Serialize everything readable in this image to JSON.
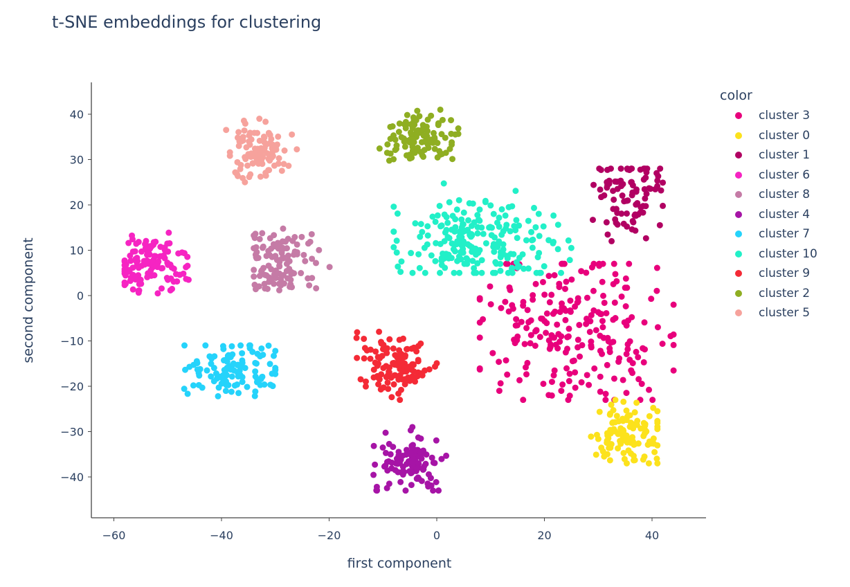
{
  "title": "t-SNE embeddings for clustering",
  "legend": {
    "title": "color",
    "items": [
      {
        "label": "cluster 3",
        "color": "#e8007c"
      },
      {
        "label": "cluster 0",
        "color": "#fce21c"
      },
      {
        "label": "cluster 1",
        "color": "#b10062"
      },
      {
        "label": "cluster 6",
        "color": "#f624c2"
      },
      {
        "label": "cluster 8",
        "color": "#c57ba6"
      },
      {
        "label": "cluster 4",
        "color": "#a614a6"
      },
      {
        "label": "cluster 7",
        "color": "#25d3fb"
      },
      {
        "label": "cluster 10",
        "color": "#22f0c8"
      },
      {
        "label": "cluster 9",
        "color": "#f42a36"
      },
      {
        "label": "cluster 2",
        "color": "#8fae22"
      },
      {
        "label": "cluster 5",
        "color": "#f6a29c"
      }
    ]
  },
  "chart_data": {
    "type": "scatter",
    "title": "t-SNE embeddings for clustering",
    "xlabel": "first component",
    "ylabel": "second component",
    "xlim": [
      -64,
      50
    ],
    "ylim": [
      -49,
      47
    ],
    "xticks": [
      -60,
      -40,
      -20,
      0,
      20,
      40
    ],
    "yticks": [
      -40,
      -30,
      -20,
      -10,
      0,
      10,
      20,
      30,
      40
    ],
    "xtick_labels": [
      "−60",
      "−40",
      "−20",
      "0",
      "20",
      "40"
    ],
    "ytick_labels": [
      "−40",
      "−30",
      "−20",
      "−10",
      "0",
      "10",
      "20",
      "30",
      "40"
    ],
    "grid": false,
    "legend_position": "right",
    "legend_title": "color",
    "series": [
      {
        "name": "cluster 3",
        "color": "#e8007c",
        "center": [
          26,
          -8
        ],
        "spread": [
          9,
          8
        ],
        "n": 230,
        "extent": {
          "x": [
            8,
            44
          ],
          "y": [
            -23,
            7
          ]
        }
      },
      {
        "name": "cluster 0",
        "color": "#fce21c",
        "center": [
          35,
          -31
        ],
        "spread": [
          3.5,
          3.5
        ],
        "n": 110,
        "extent": {
          "x": [
            28,
            41
          ],
          "y": [
            -37,
            -23
          ]
        }
      },
      {
        "name": "cluster 1",
        "color": "#b10062",
        "center": [
          36,
          22
        ],
        "spread": [
          3.5,
          4.5
        ],
        "n": 90,
        "extent": {
          "x": [
            29,
            42
          ],
          "y": [
            12,
            28
          ]
        }
      },
      {
        "name": "cluster 6",
        "color": "#f624c2",
        "center": [
          -53,
          7
        ],
        "spread": [
          3,
          3.5
        ],
        "n": 120,
        "extent": {
          "x": [
            -58,
            -45
          ],
          "y": [
            0,
            14
          ]
        }
      },
      {
        "name": "cluster 8",
        "color": "#c57ba6",
        "center": [
          -29,
          7
        ],
        "spread": [
          3.5,
          4
        ],
        "n": 110,
        "extent": {
          "x": [
            -34,
            -18
          ],
          "y": [
            -1,
            16
          ]
        }
      },
      {
        "name": "cluster 4",
        "color": "#a614a6",
        "center": [
          -5,
          -37
        ],
        "spread": [
          3.5,
          3
        ],
        "n": 110,
        "extent": {
          "x": [
            -12,
            3
          ],
          "y": [
            -43,
            -29
          ]
        }
      },
      {
        "name": "cluster 7",
        "color": "#25d3fb",
        "center": [
          -37,
          -16
        ],
        "spread": [
          4.5,
          3
        ],
        "n": 110,
        "extent": {
          "x": [
            -47,
            -30
          ],
          "y": [
            -24,
            -11
          ]
        }
      },
      {
        "name": "cluster 10",
        "color": "#22f0c8",
        "center": [
          7,
          12
        ],
        "spread": [
          8,
          4.5
        ],
        "n": 220,
        "extent": {
          "x": [
            -8,
            25
          ],
          "y": [
            5,
            25
          ]
        }
      },
      {
        "name": "cluster 9",
        "color": "#f42a36",
        "center": [
          -8,
          -15
        ],
        "spread": [
          3.5,
          3.5
        ],
        "n": 120,
        "extent": {
          "x": [
            -15,
            0
          ],
          "y": [
            -23,
            -7
          ]
        }
      },
      {
        "name": "cluster 2",
        "color": "#8fae22",
        "center": [
          -3,
          35
        ],
        "spread": [
          3.5,
          2.8
        ],
        "n": 110,
        "extent": {
          "x": [
            -13,
            4
          ],
          "y": [
            27,
            41
          ]
        }
      },
      {
        "name": "cluster 5",
        "color": "#f6a29c",
        "center": [
          -33,
          32
        ],
        "spread": [
          3,
          3.2
        ],
        "n": 100,
        "extent": {
          "x": [
            -40,
            -26
          ],
          "y": [
            25,
            39
          ]
        }
      }
    ]
  }
}
